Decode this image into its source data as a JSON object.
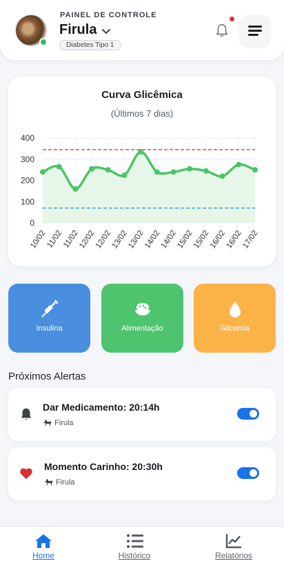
{
  "header": {
    "overline": "PAINEL DE CONTROLE",
    "pet_name": "Firula",
    "condition_badge": "Diabetes Tipo 1"
  },
  "chart_card": {
    "title": "Curva Glicêmica",
    "subtitle": "(Últimos 7 dias)"
  },
  "chart_data": {
    "type": "line",
    "title": "Curva Glicêmica",
    "subtitle": "(Últimos 7 dias)",
    "categories": [
      "10/02",
      "11/02",
      "11/02",
      "12/02",
      "12/02",
      "13/02",
      "13/02",
      "14/02",
      "14/02",
      "15/02",
      "15/02",
      "16/02",
      "16/02",
      "17/02"
    ],
    "values": [
      240,
      265,
      160,
      255,
      250,
      225,
      335,
      240,
      240,
      255,
      245,
      220,
      275,
      250
    ],
    "ylim": [
      0,
      400
    ],
    "yticks": [
      0,
      100,
      200,
      300,
      400
    ],
    "reference_lines": [
      {
        "value": 345,
        "color": "#e0523f"
      },
      {
        "value": 70,
        "color": "#3ba0d8"
      }
    ],
    "line_color": "#4cc467",
    "fill_color": "#e6f7ea",
    "grid": true
  },
  "actions": [
    {
      "label": "Insulina",
      "icon": "syringe-icon",
      "color": "#4a8ee0"
    },
    {
      "label": "Alimentação",
      "icon": "food-bowl-icon",
      "color": "#4fc46f"
    },
    {
      "label": "Glicemia",
      "icon": "blood-drop-icon",
      "color": "#fbb347"
    }
  ],
  "alerts_section": {
    "title": "Próximos Alertas",
    "items": [
      {
        "title": "Dar Medicamento: 20:14h",
        "pet": "Firula",
        "icon": "bell-icon",
        "enabled": true
      },
      {
        "title": "Momento Carinho: 20:30h",
        "pet": "Firula",
        "icon": "heart-icon",
        "icon_color": "#d92d3a",
        "enabled": true
      }
    ]
  },
  "nav": {
    "items": [
      {
        "label": "Home",
        "icon": "home-icon",
        "active": true
      },
      {
        "label": "Histórico",
        "icon": "list-icon",
        "active": false
      },
      {
        "label": "Relatórios",
        "icon": "chart-icon",
        "active": false
      }
    ]
  },
  "colors": {
    "accent": "#1a73e8",
    "online": "#2fbf5a",
    "notification": "#e03131"
  }
}
